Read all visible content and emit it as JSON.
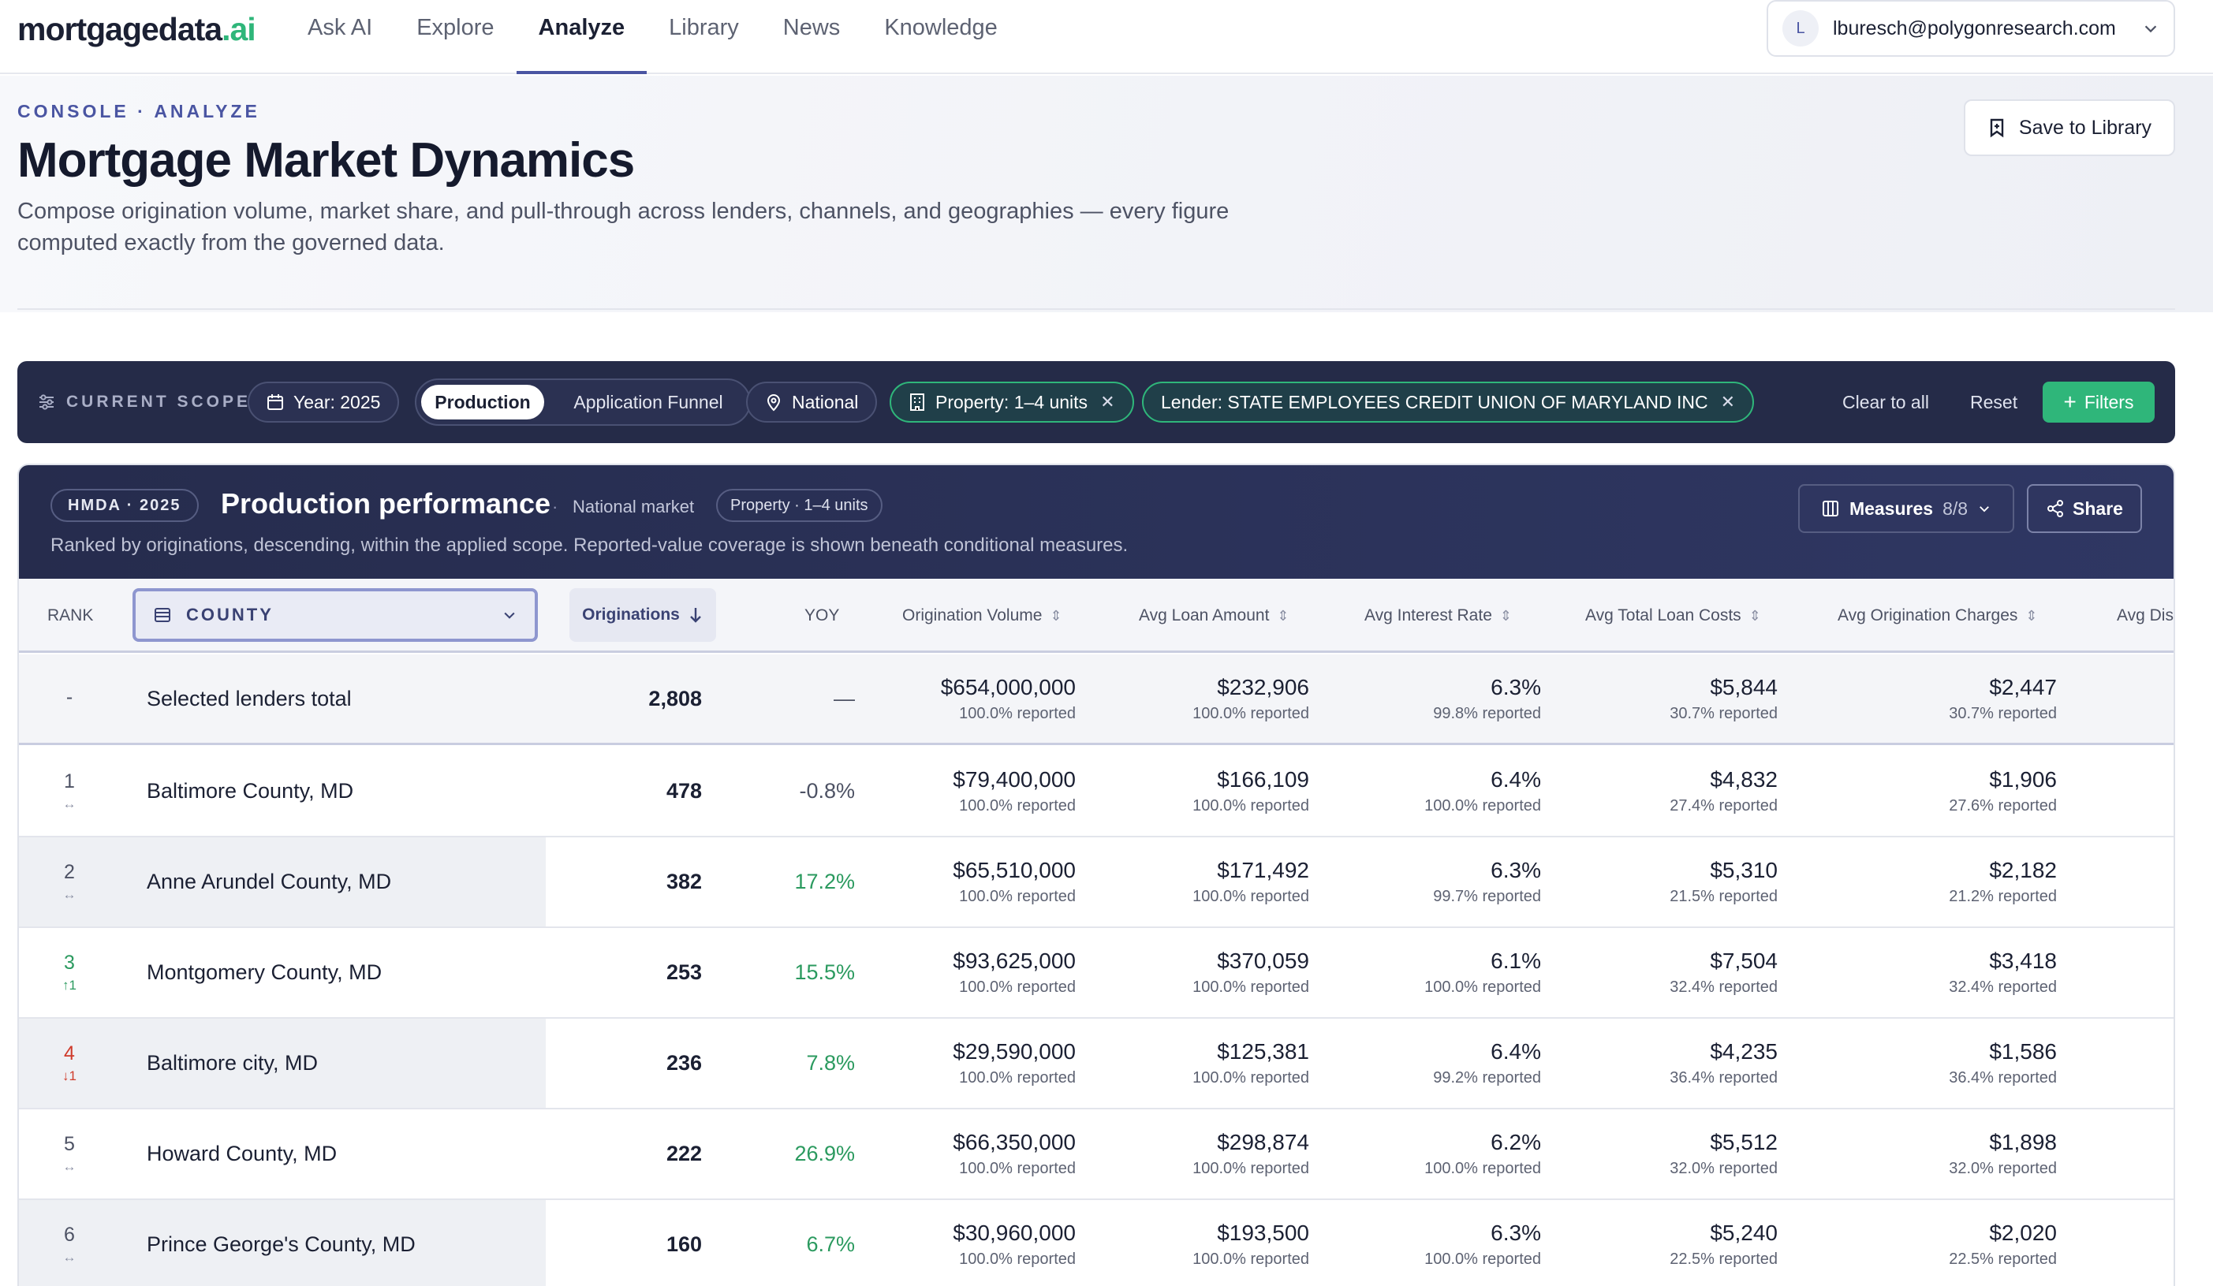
{
  "nav": {
    "logo_main": "mortgagedata",
    "logo_accent": ".ai",
    "links": [
      "Ask AI",
      "Explore",
      "Analyze",
      "Library",
      "News",
      "Knowledge"
    ],
    "active_link": "Analyze",
    "account_initial": "L",
    "account_email": "lburesch@polygonresearch.com"
  },
  "header": {
    "breadcrumb": "CONSOLE · ANALYZE",
    "title": "Mortgage Market Dynamics",
    "subtitle": "Compose origination volume, market share, and pull-through across lenders, channels, and geographies — every figure computed exactly from the governed data.",
    "save_label": "Save to Library"
  },
  "scope": {
    "label": "CURRENT SCOPE",
    "year_chip": "Year: 2025",
    "toggle_on": "Production",
    "toggle_off": "Application Funnel",
    "geo_chip": "National",
    "property_chip": "Property: 1–4 units",
    "lender_chip": "Lender: STATE EMPLOYEES CREDIT UNION OF MARYLAND INC",
    "clear_label": "Clear to all",
    "reset_label": "Reset",
    "filters_label": "Filters"
  },
  "panel": {
    "badge": "HMDA · 2025",
    "title": "Production performance",
    "separator": "·",
    "scope_text": "National market",
    "property_pill": "Property · 1–4 units",
    "description": "Ranked by originations, descending, within the applied scope. Reported-value coverage is shown beneath conditional measures.",
    "measures_label": "Measures",
    "measures_count": "8/8",
    "share_label": "Share"
  },
  "table": {
    "headers": {
      "rank": "RANK",
      "dimension": "COUNTY",
      "originations": "Originations",
      "yoy": "YOY",
      "origination_volume": "Origination Volume",
      "avg_loan_amount": "Avg Loan Amount",
      "avg_interest_rate": "Avg Interest Rate",
      "avg_total_loan_costs": "Avg Total Loan Costs",
      "avg_origination_charges": "Avg Origination Charges",
      "avg_dis": "Avg Dis"
    },
    "total": {
      "rank": "-",
      "name": "Selected lenders total",
      "originations": "2,808",
      "yoy": "—",
      "volume": "$654,000,000",
      "volume_rep": "100.0% reported",
      "loan": "$232,906",
      "loan_rep": "100.0% reported",
      "rate": "6.3%",
      "rate_rep": "99.8% reported",
      "costs": "$5,844",
      "costs_rep": "30.7% reported",
      "charges": "$2,447",
      "charges_rep": "30.7% reported"
    },
    "rows": [
      {
        "rank": "1",
        "delta": "↔",
        "name": "Baltimore County, MD",
        "originations": "478",
        "yoy": "-0.8%",
        "volume": "$79,400,000",
        "volume_rep": "100.0% reported",
        "loan": "$166,109",
        "loan_rep": "100.0% reported",
        "rate": "6.4%",
        "rate_rep": "100.0% reported",
        "costs": "$4,832",
        "costs_rep": "27.4% reported",
        "charges": "$1,906",
        "charges_rep": "27.6% reported"
      },
      {
        "rank": "2",
        "delta": "↔",
        "name": "Anne Arundel County, MD",
        "originations": "382",
        "yoy": "17.2%",
        "volume": "$65,510,000",
        "volume_rep": "100.0% reported",
        "loan": "$171,492",
        "loan_rep": "100.0% reported",
        "rate": "6.3%",
        "rate_rep": "99.7% reported",
        "costs": "$5,310",
        "costs_rep": "21.5% reported",
        "charges": "$2,182",
        "charges_rep": "21.2% reported"
      },
      {
        "rank": "3",
        "delta": "↑1",
        "name": "Montgomery County, MD",
        "originations": "253",
        "yoy": "15.5%",
        "volume": "$93,625,000",
        "volume_rep": "100.0% reported",
        "loan": "$370,059",
        "loan_rep": "100.0% reported",
        "rate": "6.1%",
        "rate_rep": "100.0% reported",
        "costs": "$7,504",
        "costs_rep": "32.4% reported",
        "charges": "$3,418",
        "charges_rep": "32.4% reported"
      },
      {
        "rank": "4",
        "delta": "↓1",
        "name": "Baltimore city, MD",
        "originations": "236",
        "yoy": "7.8%",
        "volume": "$29,590,000",
        "volume_rep": "100.0% reported",
        "loan": "$125,381",
        "loan_rep": "100.0% reported",
        "rate": "6.4%",
        "rate_rep": "99.2% reported",
        "costs": "$4,235",
        "costs_rep": "36.4% reported",
        "charges": "$1,586",
        "charges_rep": "36.4% reported"
      },
      {
        "rank": "5",
        "delta": "↔",
        "name": "Howard County, MD",
        "originations": "222",
        "yoy": "26.9%",
        "volume": "$66,350,000",
        "volume_rep": "100.0% reported",
        "loan": "$298,874",
        "loan_rep": "100.0% reported",
        "rate": "6.2%",
        "rate_rep": "100.0% reported",
        "costs": "$5,512",
        "costs_rep": "32.0% reported",
        "charges": "$1,898",
        "charges_rep": "32.0% reported"
      },
      {
        "rank": "6",
        "delta": "↔",
        "name": "Prince George's County, MD",
        "originations": "160",
        "yoy": "6.7%",
        "volume": "$30,960,000",
        "volume_rep": "100.0% reported",
        "loan": "$193,500",
        "loan_rep": "100.0% reported",
        "rate": "6.3%",
        "rate_rep": "100.0% reported",
        "costs": "$5,240",
        "costs_rep": "22.5% reported",
        "charges": "$2,020",
        "charges_rep": "22.5% reported"
      }
    ]
  },
  "colors": {
    "accent_green": "#2fb67a",
    "nav_accent": "#4a55a2",
    "scope_bg": "#252b48",
    "positive": "#2b9a5f",
    "negative": "#cf3b2b"
  }
}
